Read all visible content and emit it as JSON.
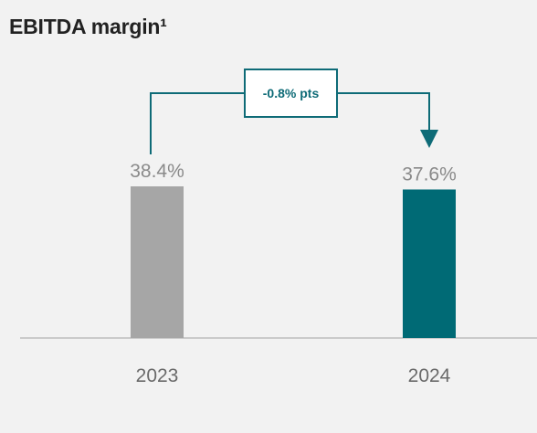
{
  "chart_data": {
    "type": "bar",
    "title": "EBITDA margin¹",
    "categories": [
      "2023",
      "2024"
    ],
    "values": [
      38.4,
      37.6
    ],
    "value_labels": [
      "38.4%",
      "37.6%"
    ],
    "bar_colors": [
      "#a6a6a6",
      "#006a75"
    ],
    "unit": "%",
    "annotation": {
      "label": "-0.8% pts",
      "from": "2023",
      "to": "2024",
      "color": "#0e6b77"
    },
    "grid": false,
    "legend": "none"
  }
}
